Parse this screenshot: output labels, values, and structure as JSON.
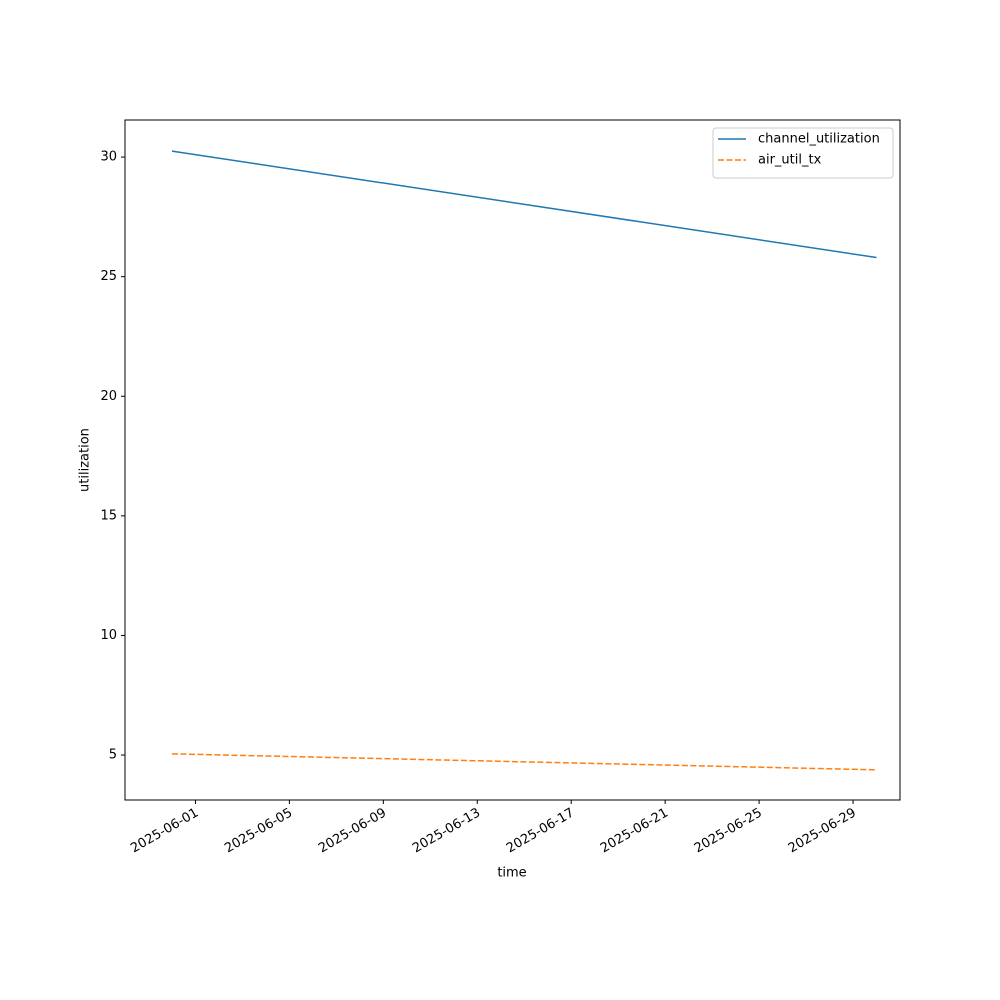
{
  "chart_data": {
    "type": "line",
    "x_label": "time",
    "y_label": "utilization",
    "x": [
      "2025-05-31",
      "2025-06-30"
    ],
    "series": [
      {
        "name": "channel_utilization",
        "color": "#1f77b4",
        "dash": "solid",
        "values": [
          30.25,
          25.8
        ]
      },
      {
        "name": "air_util_tx",
        "color": "#ff7f0e",
        "dash": "dashed",
        "values": [
          5.05,
          4.38
        ]
      }
    ],
    "xlim": [
      "2025-05-29",
      "2025-07-01"
    ],
    "xticks": [
      "2025-06-01",
      "2025-06-05",
      "2025-06-09",
      "2025-06-13",
      "2025-06-17",
      "2025-06-21",
      "2025-06-25",
      "2025-06-29"
    ],
    "ylim": [
      3.12,
      31.55
    ],
    "yticks": [
      5,
      10,
      15,
      20,
      25,
      30
    ],
    "grid": false,
    "legend": "upper right"
  }
}
